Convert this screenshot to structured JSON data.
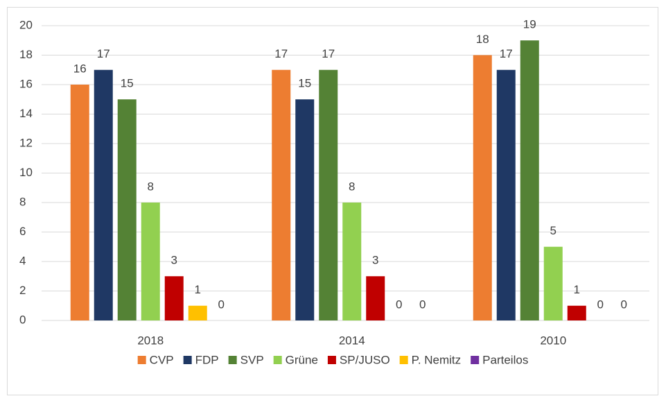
{
  "chart_data": {
    "type": "bar",
    "categories": [
      "2018",
      "2014",
      "2010"
    ],
    "series": [
      {
        "name": "CVP",
        "color": "#ed7d31",
        "values": [
          16,
          17,
          18
        ]
      },
      {
        "name": "FDP",
        "color": "#1f3864",
        "values": [
          17,
          15,
          17
        ]
      },
      {
        "name": "SVP",
        "color": "#548235",
        "values": [
          15,
          17,
          19
        ]
      },
      {
        "name": "Grüne",
        "color": "#92d050",
        "values": [
          8,
          8,
          5
        ]
      },
      {
        "name": "SP/JUSO",
        "color": "#c00000",
        "values": [
          3,
          3,
          1
        ]
      },
      {
        "name": "P. Nemitz",
        "color": "#ffc000",
        "values": [
          1,
          0,
          0
        ]
      },
      {
        "name": "Parteilos",
        "color": "#7030a0",
        "values": [
          0,
          0,
          0
        ]
      }
    ],
    "ylim": [
      0,
      20
    ],
    "yticks": [
      0,
      2,
      4,
      6,
      8,
      10,
      12,
      14,
      16,
      18,
      20
    ],
    "grid": true,
    "legend": "bottom"
  }
}
